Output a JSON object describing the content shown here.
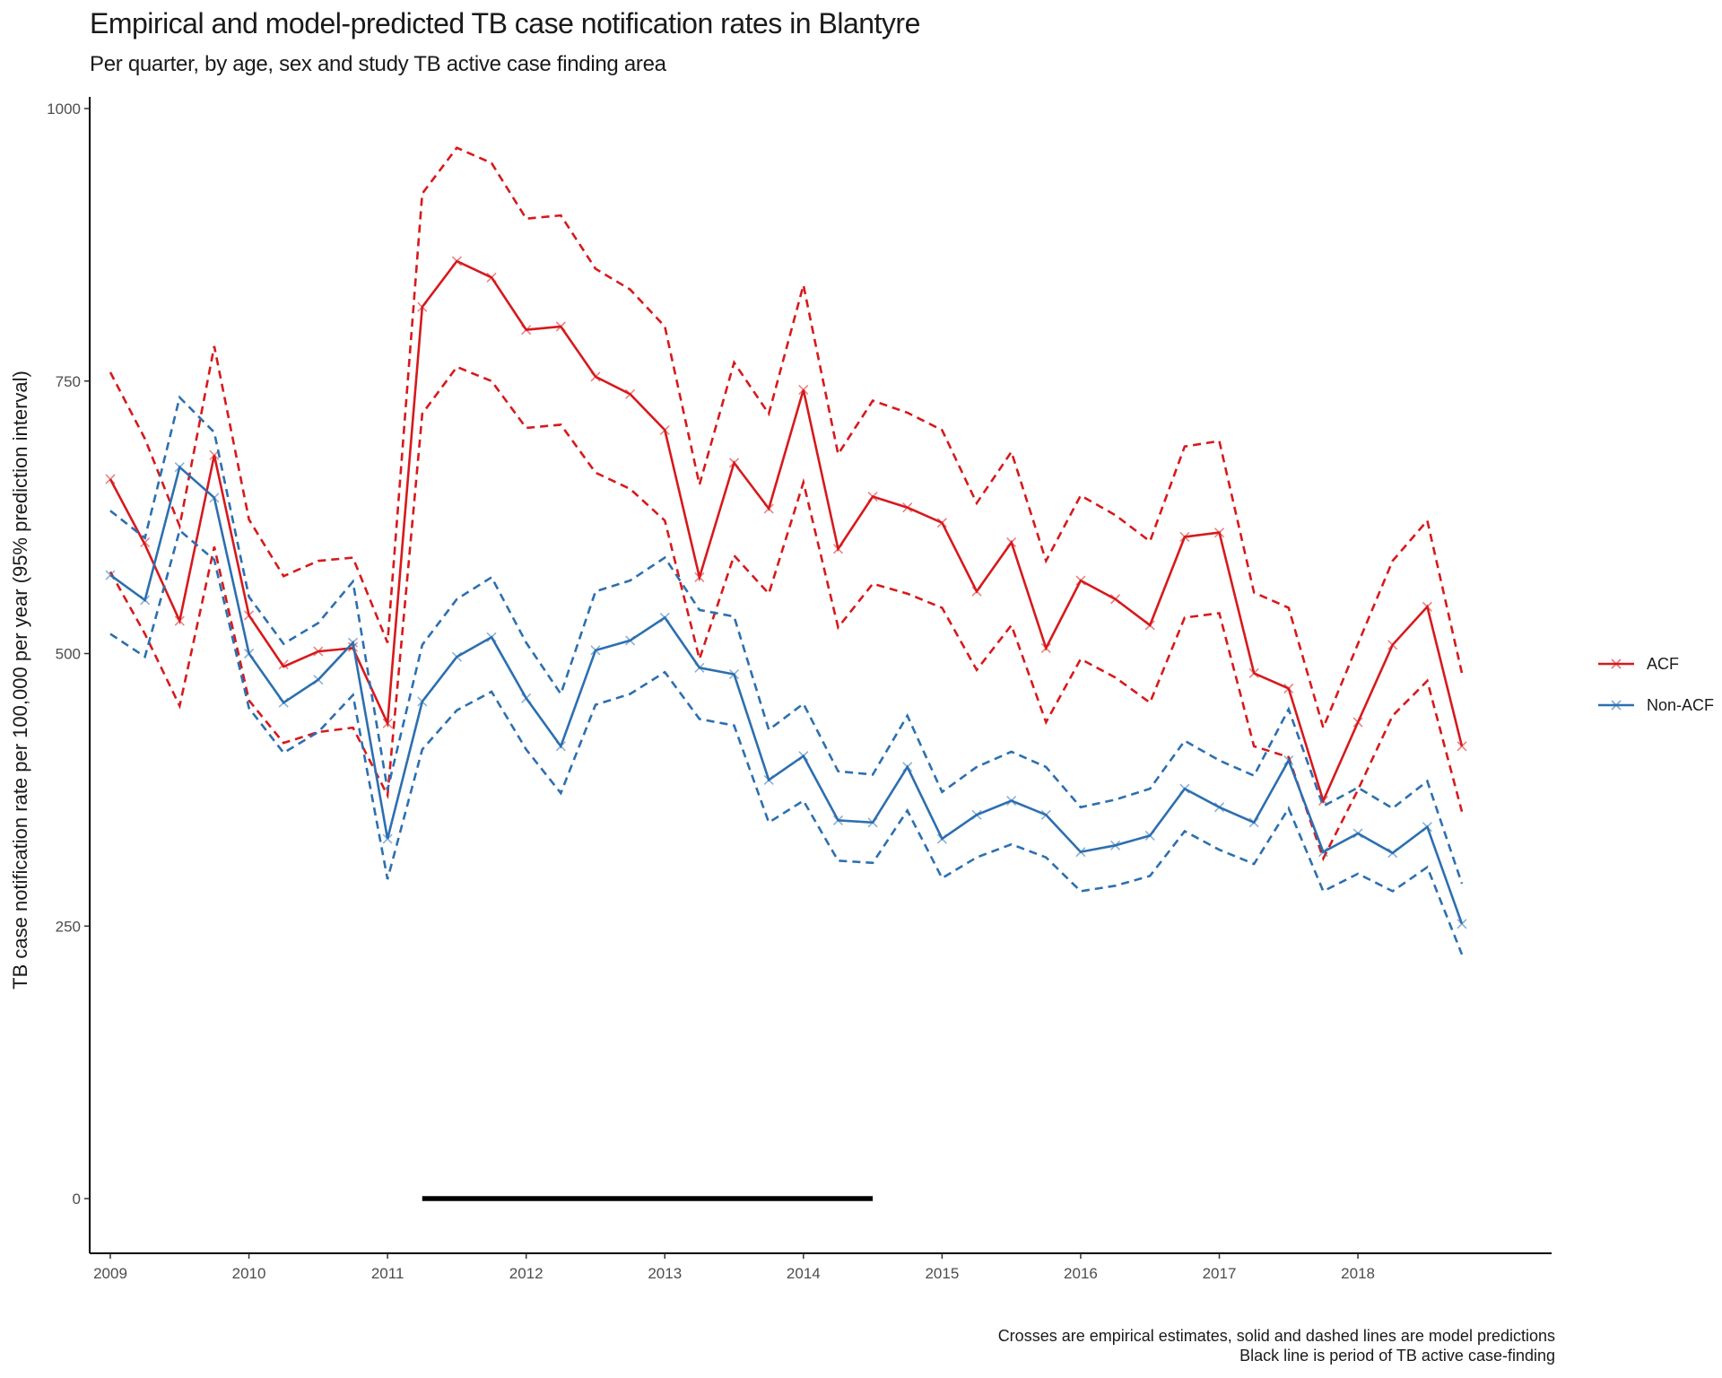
{
  "chart_data": {
    "type": "line",
    "title": "Empirical and model-predicted TB case notification rates in Blantyre",
    "subtitle": "Per quarter, by age, sex and study TB active case finding area",
    "ylabel": "TB case notification rate per 100,000 per year (95% prediction interval)",
    "xlabel": "",
    "caption": [
      "Crosses are empirical estimates, solid and dashed lines are model predictions",
      "Black line is period of TB active case-finding"
    ],
    "xlim": [
      2009,
      2018.75
    ],
    "ylim": [
      0,
      1000
    ],
    "x_ticks": [
      2009,
      2010,
      2011,
      2012,
      2013,
      2014,
      2015,
      2016,
      2017,
      2018
    ],
    "x_tick_labels": [
      "2009",
      "2010",
      "2011",
      "2012",
      "2013",
      "2014",
      "2015",
      "2016",
      "2017",
      "2018"
    ],
    "y_ticks": [
      0,
      250,
      500,
      750,
      1000
    ],
    "y_tick_labels": [
      "0",
      "250",
      "500",
      "750",
      "1000"
    ],
    "grid": false,
    "legend_position": "right",
    "x": [
      2009.0,
      2009.25,
      2009.5,
      2009.75,
      2010.0,
      2010.25,
      2010.5,
      2010.75,
      2011.0,
      2011.25,
      2011.5,
      2011.75,
      2012.0,
      2012.25,
      2012.5,
      2012.75,
      2013.0,
      2013.25,
      2013.5,
      2013.75,
      2014.0,
      2014.25,
      2014.5,
      2014.75,
      2015.0,
      2015.25,
      2015.5,
      2015.75,
      2016.0,
      2016.25,
      2016.5,
      2016.75,
      2017.0,
      2017.25,
      2017.5,
      2017.75,
      2018.0,
      2018.25,
      2018.5,
      2018.75
    ],
    "series": [
      {
        "name": "ACF",
        "color": "#d7191c",
        "predicted": [
          660,
          600,
          530,
          682,
          535,
          488,
          502,
          505,
          436,
          818,
          860,
          845,
          797,
          800,
          754,
          738,
          705,
          570,
          675,
          633,
          742,
          596,
          644,
          634,
          620,
          557,
          602,
          505,
          567,
          550,
          526,
          607,
          611,
          482,
          468,
          365,
          437,
          508,
          543,
          415
        ],
        "lower": [
          575,
          518,
          452,
          598,
          457,
          418,
          428,
          432,
          370,
          720,
          763,
          750,
          707,
          710,
          666,
          651,
          622,
          495,
          590,
          555,
          657,
          524,
          564,
          555,
          542,
          485,
          526,
          437,
          495,
          478,
          455,
          533,
          537,
          415,
          405,
          312,
          375,
          443,
          475,
          355
        ],
        "upper": [
          758,
          697,
          617,
          782,
          623,
          571,
          585,
          588,
          510,
          922,
          964,
          950,
          899,
          902,
          853,
          834,
          800,
          655,
          767,
          720,
          838,
          683,
          732,
          721,
          705,
          638,
          685,
          585,
          645,
          627,
          603,
          690,
          695,
          556,
          542,
          432,
          509,
          585,
          622,
          482
        ],
        "empirical": [
          660,
          602,
          530,
          682,
          535,
          490,
          502,
          506,
          436,
          818,
          860,
          845,
          797,
          800,
          754,
          738,
          705,
          570,
          675,
          633,
          742,
          596,
          644,
          634,
          620,
          557,
          602,
          505,
          567,
          550,
          526,
          607,
          611,
          482,
          468,
          365,
          437,
          508,
          543,
          415
        ]
      },
      {
        "name": "Non-ACF",
        "color": "#2c6fb0",
        "predicted": [
          572,
          549,
          671,
          643,
          500,
          455,
          476,
          510,
          330,
          456,
          497,
          515,
          459,
          415,
          503,
          512,
          533,
          487,
          481,
          384,
          406,
          347,
          345,
          396,
          330,
          352,
          365,
          352,
          318,
          324,
          333,
          376,
          359,
          345,
          402,
          318,
          335,
          317,
          341,
          252
        ],
        "lower": [
          518,
          497,
          613,
          586,
          450,
          409,
          428,
          462,
          293,
          412,
          448,
          465,
          412,
          372,
          453,
          463,
          483,
          440,
          434,
          345,
          365,
          310,
          308,
          356,
          294,
          313,
          325,
          313,
          282,
          287,
          296,
          337,
          320,
          307,
          358,
          282,
          298,
          282,
          304,
          224
        ],
        "upper": [
          631,
          606,
          735,
          703,
          552,
          509,
          528,
          566,
          375,
          508,
          550,
          570,
          510,
          463,
          557,
          567,
          588,
          540,
          534,
          430,
          454,
          392,
          389,
          443,
          373,
          396,
          410,
          396,
          359,
          366,
          376,
          420,
          402,
          388,
          449,
          360,
          377,
          358,
          383,
          289
        ],
        "empirical": [
          572,
          549,
          671,
          643,
          500,
          455,
          476,
          510,
          330,
          456,
          497,
          515,
          459,
          415,
          503,
          512,
          533,
          487,
          481,
          384,
          406,
          347,
          345,
          396,
          330,
          352,
          365,
          352,
          318,
          324,
          333,
          376,
          359,
          345,
          402,
          318,
          335,
          317,
          341,
          252
        ]
      }
    ],
    "acf_period": {
      "start": 2011.25,
      "end": 2014.5,
      "y": 0,
      "color": "#000000"
    }
  }
}
